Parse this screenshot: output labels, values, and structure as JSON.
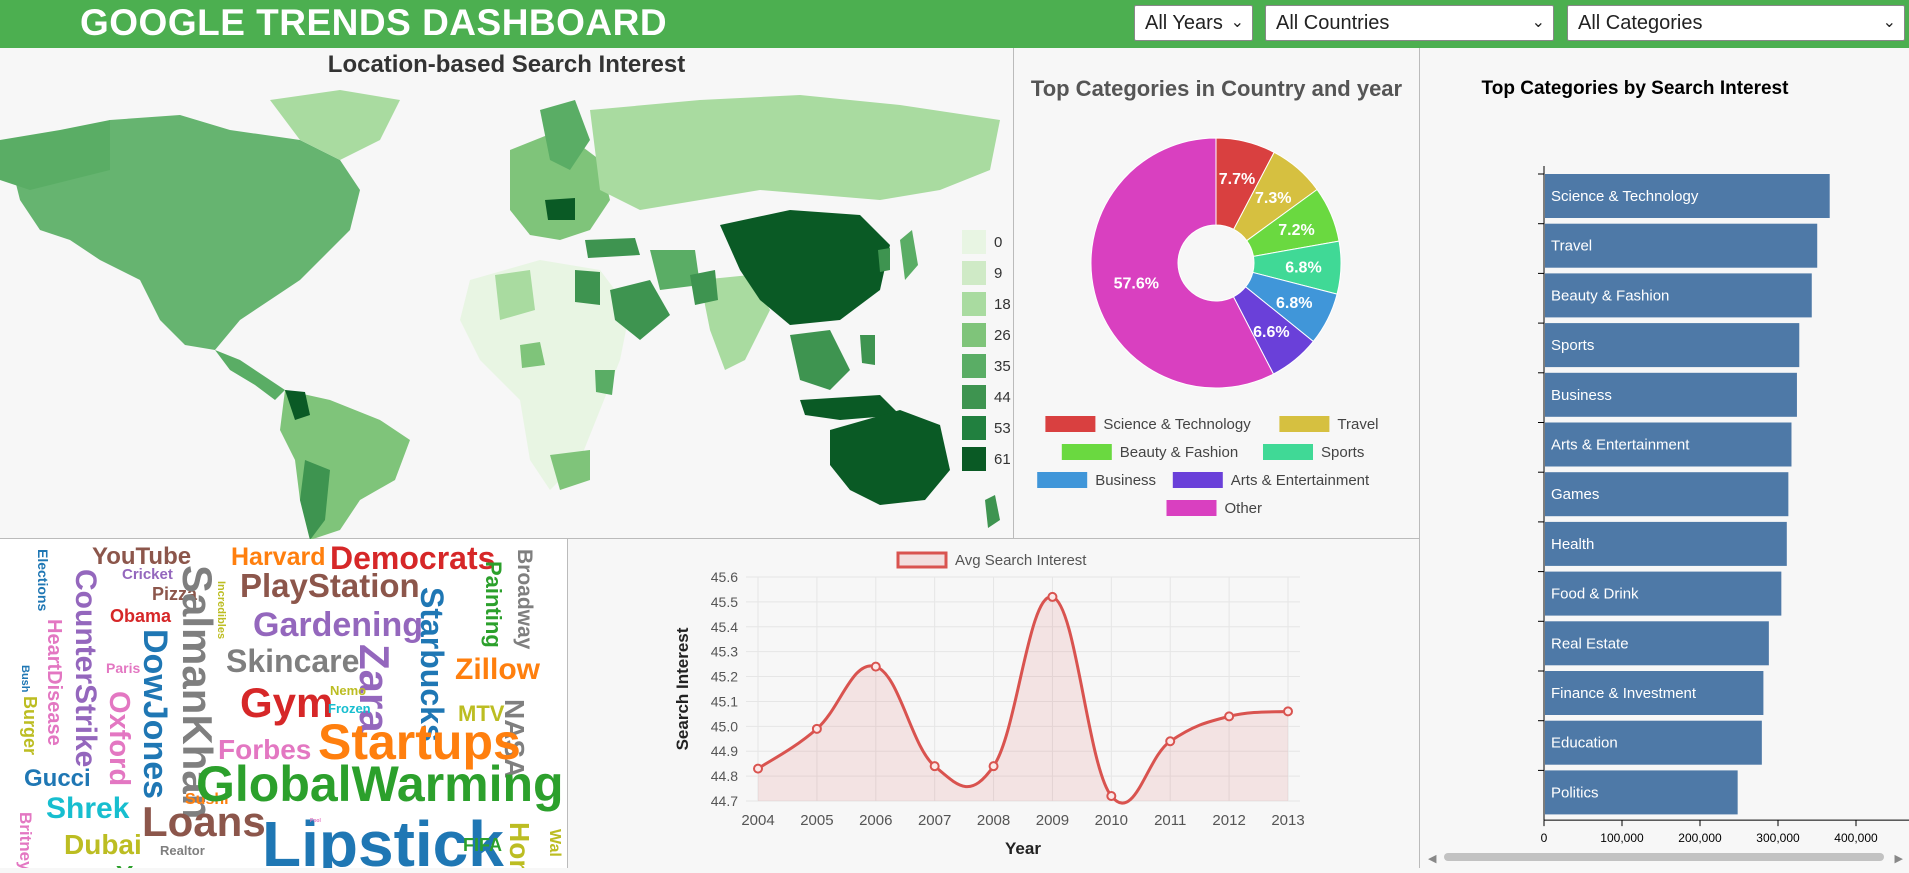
{
  "header": {
    "title": "GOOGLE TRENDS DASHBOARD",
    "year_select": "All Years",
    "country_select": "All Countries",
    "category_select": "All Categories"
  },
  "map": {
    "title": "Location-based Search Interest",
    "legend": [
      "0",
      "9",
      "18",
      "26",
      "35",
      "44",
      "53",
      "61"
    ],
    "legend_colors": [
      "#e8f5e3",
      "#cfeac6",
      "#a9dba0",
      "#7fc47a",
      "#5aad65",
      "#3e9450",
      "#21803f",
      "#0a5a25"
    ]
  },
  "pie": {
    "title": "Top Categories in Country and year",
    "slices": [
      {
        "label": "Science & Technology",
        "value": 7.7,
        "text": "7.7%",
        "color": "#d94040"
      },
      {
        "label": "Travel",
        "value": 7.3,
        "text": "7.3%",
        "color": "#d6c040"
      },
      {
        "label": "Beauty & Fashion",
        "value": 7.2,
        "text": "7.2%",
        "color": "#6ad940"
      },
      {
        "label": "Sports",
        "value": 6.8,
        "text": "6.8%",
        "color": "#40d996"
      },
      {
        "label": "Business",
        "value": 6.8,
        "text": "6.8%",
        "color": "#4096d9"
      },
      {
        "label": "Arts & Entertainment",
        "value": 6.6,
        "text": "6.6%",
        "color": "#6a40d9"
      },
      {
        "label": "Other",
        "value": 57.6,
        "text": "57.6%",
        "color": "#d940c0"
      }
    ]
  },
  "bars": {
    "title": "Top Categories by Search Interest",
    "xticks": [
      "0",
      "100,000",
      "200,000",
      "300,000",
      "400,000",
      "500,000"
    ],
    "xmax": 500000,
    "color": "#4e79a7",
    "items": [
      {
        "label": "Science & Technology",
        "value": 365000
      },
      {
        "label": "Travel",
        "value": 349000
      },
      {
        "label": "Beauty & Fashion",
        "value": 342000
      },
      {
        "label": "Sports",
        "value": 326000
      },
      {
        "label": "Business",
        "value": 323000
      },
      {
        "label": "Arts & Entertainment",
        "value": 316000
      },
      {
        "label": "Games",
        "value": 312000
      },
      {
        "label": "Health",
        "value": 310000
      },
      {
        "label": "Food & Drink",
        "value": 303000
      },
      {
        "label": "Real Estate",
        "value": 287000
      },
      {
        "label": "Finance & Investment",
        "value": 280000
      },
      {
        "label": "Education",
        "value": 278000
      },
      {
        "label": "Politics",
        "value": 247000
      }
    ]
  },
  "chart_data": {
    "type": "line",
    "legend": "Avg Search Interest",
    "xlabel": "Year",
    "ylabel": "Search Interest",
    "x": [
      "2004",
      "2005",
      "2006",
      "2007",
      "2008",
      "2009",
      "2010",
      "2011",
      "2012",
      "2013"
    ],
    "values": [
      44.83,
      44.99,
      45.24,
      44.84,
      44.84,
      45.52,
      44.72,
      44.94,
      45.04,
      45.06
    ],
    "yticks": [
      "44.7",
      "44.8",
      "44.9",
      "45.0",
      "45.1",
      "45.2",
      "45.3",
      "45.4",
      "45.5",
      "45.6"
    ],
    "ylim": [
      44.7,
      45.6
    ],
    "color": "#d9534f"
  },
  "wordcloud": [
    {
      "t": "YouTube",
      "c": "#8c564b"
    },
    {
      "t": "Harvard",
      "c": "#ff7f0e"
    },
    {
      "t": "Democrats",
      "c": "#d62728"
    },
    {
      "t": "Broadway",
      "c": "#7f7f7f"
    },
    {
      "t": "Elections",
      "c": "#1f77b4"
    },
    {
      "t": "Cricket",
      "c": "#9467bd"
    },
    {
      "t": "Pizza",
      "c": "#8c564b"
    },
    {
      "t": "Obama",
      "c": "#d62728"
    },
    {
      "t": "SalmanKhan",
      "c": "#7f7f7f"
    },
    {
      "t": "Incredibles",
      "c": "#bcbd22"
    },
    {
      "t": "PlayStation",
      "c": "#8c564b"
    },
    {
      "t": "Painting",
      "c": "#2ca02c"
    },
    {
      "t": "CounterStrike",
      "c": "#9467bd"
    },
    {
      "t": "HeartDisease",
      "c": "#e377c2"
    },
    {
      "t": "DowJones",
      "c": "#1f77b4"
    },
    {
      "t": "Gardening",
      "c": "#9467bd"
    },
    {
      "t": "Starbucks",
      "c": "#1f77b4"
    },
    {
      "t": "Zillow",
      "c": "#ff7f0e"
    },
    {
      "t": "Skincare",
      "c": "#7f7f7f"
    },
    {
      "t": "Zara",
      "c": "#9467bd"
    },
    {
      "t": "Paris",
      "c": "#e377c2"
    },
    {
      "t": "Bush",
      "c": "#1f77b4"
    },
    {
      "t": "Gym",
      "c": "#d62728"
    },
    {
      "t": "Nemo",
      "c": "#bcbd22"
    },
    {
      "t": "Frozen",
      "c": "#17becf"
    },
    {
      "t": "MTV",
      "c": "#bcbd22"
    },
    {
      "t": "NASA",
      "c": "#7f7f7f"
    },
    {
      "t": "Burger",
      "c": "#bcbd22"
    },
    {
      "t": "Oxford",
      "c": "#e377c2"
    },
    {
      "t": "Forbes",
      "c": "#e377c2"
    },
    {
      "t": "Startups",
      "c": "#ff7f0e"
    },
    {
      "t": "Gucci",
      "c": "#1f77b4"
    },
    {
      "t": "Shrek",
      "c": "#17becf"
    },
    {
      "t": "Sushi",
      "c": "#ff7f0e"
    },
    {
      "t": "GlobalWarming",
      "c": "#2ca02c"
    },
    {
      "t": "Loans",
      "c": "#8c564b"
    },
    {
      "t": "Dubai",
      "c": "#bcbd22"
    },
    {
      "t": "Britney",
      "c": "#e377c2"
    },
    {
      "t": "Realtor",
      "c": "#7f7f7f"
    },
    {
      "t": "Lipstick",
      "c": "#1f77b4"
    },
    {
      "t": "FIFA",
      "c": "#2ca02c"
    },
    {
      "t": "Hom",
      "c": "#bcbd22"
    },
    {
      "t": "Wal",
      "c": "#bcbd22"
    },
    {
      "t": "Yoga",
      "c": "#2ca02c"
    },
    {
      "t": "Pool",
      "c": "#e377c2"
    }
  ]
}
